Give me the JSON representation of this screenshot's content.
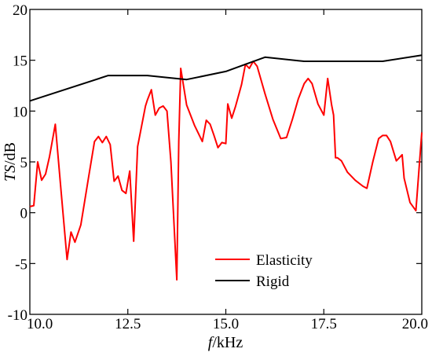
{
  "chart_data": {
    "type": "line",
    "xlabel_italic": "f",
    "xlabel_unit": "/kHz",
    "ylabel_italic": "TS",
    "ylabel_unit": "/dB",
    "xlim": [
      10.0,
      20.0
    ],
    "ylim": [
      -10,
      20
    ],
    "x_ticks": [
      "10.0",
      "12.5",
      "15.0",
      "17.5",
      "20.0"
    ],
    "y_ticks": [
      "-10",
      "-5",
      "0",
      "5",
      "10",
      "15",
      "20"
    ],
    "grid": false,
    "legend_position": "lower-right",
    "series": [
      {
        "name": "Elasticity",
        "color": "#ff0000",
        "x": [
          10.0,
          10.1,
          10.2,
          10.3,
          10.4,
          10.5,
          10.65,
          10.8,
          10.95,
          11.05,
          11.15,
          11.3,
          11.5,
          11.65,
          11.75,
          11.85,
          11.95,
          12.05,
          12.15,
          12.25,
          12.35,
          12.45,
          12.55,
          12.65,
          12.75,
          12.95,
          13.0,
          13.1,
          13.2,
          13.3,
          13.4,
          13.5,
          13.6,
          13.75,
          13.8,
          13.85,
          14.0,
          14.2,
          14.4,
          14.5,
          14.6,
          14.7,
          14.8,
          14.9,
          15.0,
          15.05,
          15.15,
          15.25,
          15.4,
          15.5,
          15.6,
          15.7,
          15.8,
          16.0,
          16.2,
          16.4,
          16.55,
          16.7,
          16.85,
          17.0,
          17.1,
          17.2,
          17.35,
          17.5,
          17.6,
          17.7,
          17.75,
          17.8,
          17.85,
          17.95,
          18.1,
          18.3,
          18.5,
          18.6,
          18.75,
          18.9,
          19.0,
          19.1,
          19.2,
          19.35,
          19.5,
          19.55,
          19.7,
          19.85,
          20.0
        ],
        "y": [
          0.6,
          0.7,
          5.0,
          3.2,
          3.8,
          5.5,
          8.7,
          2.0,
          -4.6,
          -1.9,
          -2.9,
          -1.2,
          3.5,
          7.0,
          7.5,
          6.9,
          7.5,
          6.7,
          3.1,
          3.6,
          2.2,
          1.9,
          4.1,
          -2.8,
          6.5,
          10.5,
          11.1,
          12.1,
          9.6,
          10.3,
          10.5,
          10.0,
          5.0,
          -6.6,
          7.0,
          14.2,
          10.6,
          8.6,
          7.0,
          9.1,
          8.7,
          7.6,
          6.4,
          6.9,
          6.8,
          10.7,
          9.3,
          10.5,
          12.6,
          14.6,
          14.2,
          14.9,
          14.4,
          11.7,
          9.2,
          7.3,
          7.4,
          9.2,
          11.2,
          12.7,
          13.2,
          12.7,
          10.7,
          9.6,
          13.2,
          10.6,
          9.6,
          5.4,
          5.4,
          5.1,
          4.0,
          3.2,
          2.6,
          2.4,
          5.0,
          7.3,
          7.6,
          7.6,
          7.0,
          5.1,
          5.7,
          3.4,
          1.0,
          0.2,
          7.9
        ]
      },
      {
        "name": "Rigid",
        "color": "#000000",
        "x": [
          10.0,
          12.0,
          13.0,
          14.0,
          15.0,
          15.5,
          16.0,
          17.0,
          18.0,
          19.0,
          20.0
        ],
        "y": [
          11.0,
          13.5,
          13.5,
          13.1,
          13.9,
          14.6,
          15.3,
          14.9,
          14.9,
          14.9,
          15.5
        ]
      }
    ]
  }
}
